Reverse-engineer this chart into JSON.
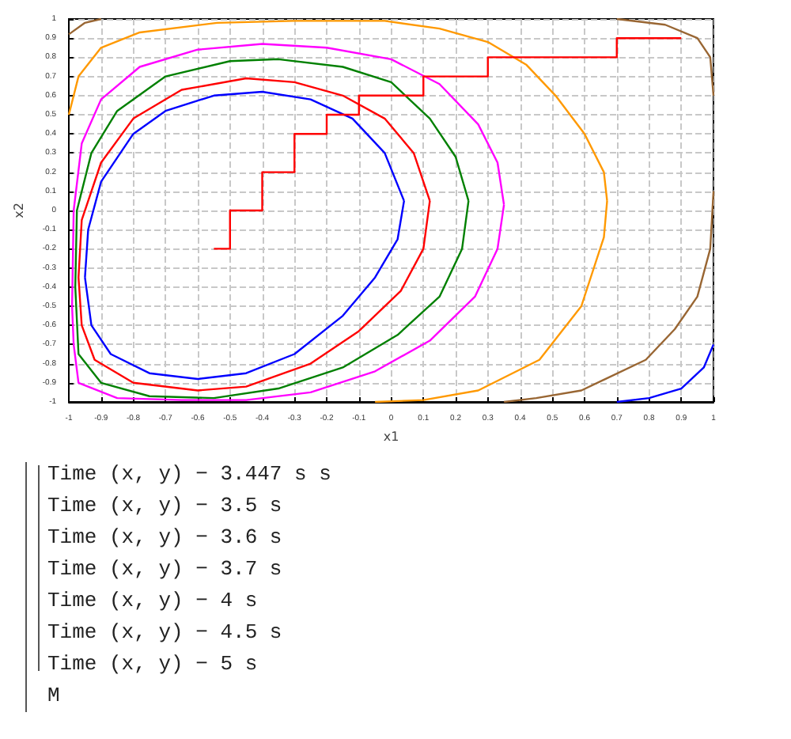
{
  "chart_data": {
    "type": "line",
    "xlabel": "x1",
    "ylabel": "x2",
    "grid": true,
    "marker": "none",
    "line_style": "solid",
    "xlim": [
      -1,
      1
    ],
    "ylim": [
      -1,
      1
    ],
    "xticks": [
      -1,
      -0.9,
      -0.8,
      -0.7,
      -0.6,
      -0.5,
      -0.4,
      -0.3,
      -0.2,
      -0.1,
      0,
      0.1,
      0.2,
      0.3,
      0.4,
      0.5,
      0.6,
      0.7,
      0.8,
      0.9,
      1
    ],
    "yticks": [
      -1,
      -0.9,
      -0.8,
      -0.7,
      -0.6,
      -0.5,
      -0.4,
      -0.3,
      -0.2,
      -0.1,
      0,
      0.1,
      0.2,
      0.3,
      0.4,
      0.5,
      0.6,
      0.7,
      0.8,
      0.9,
      1
    ],
    "series": [
      {
        "color": "#0000ff",
        "x": [
          -0.95,
          -0.94,
          -0.9,
          -0.8,
          -0.7,
          -0.55,
          -0.4,
          -0.25,
          -0.12,
          -0.02,
          0.04,
          null,
          -0.95,
          -0.93,
          -0.87,
          -0.75,
          -0.6,
          -0.45,
          -0.3,
          -0.15,
          -0.05,
          0.02,
          0.04
        ],
        "values": [
          -0.35,
          -0.1,
          0.15,
          0.4,
          0.52,
          0.6,
          0.62,
          0.58,
          0.48,
          0.3,
          0.05,
          null,
          -0.35,
          -0.6,
          -0.75,
          -0.85,
          -0.88,
          -0.85,
          -0.75,
          -0.55,
          -0.35,
          -0.15,
          0.05
        ]
      },
      {
        "color": "#ff0000",
        "x": [
          -0.97,
          -0.96,
          -0.9,
          -0.8,
          -0.65,
          -0.45,
          -0.3,
          -0.15,
          -0.02,
          0.07,
          0.12,
          null,
          -0.97,
          -0.96,
          -0.92,
          -0.8,
          -0.6,
          -0.45,
          -0.25,
          -0.1,
          0.03,
          0.1,
          0.12
        ],
        "values": [
          -0.35,
          -0.05,
          0.25,
          0.48,
          0.63,
          0.69,
          0.67,
          0.6,
          0.48,
          0.3,
          0.05,
          null,
          -0.35,
          -0.6,
          -0.78,
          -0.9,
          -0.94,
          -0.92,
          -0.8,
          -0.63,
          -0.42,
          -0.2,
          0.05
        ]
      },
      {
        "color": "#008000",
        "x": [
          -0.98,
          -0.975,
          -0.93,
          -0.85,
          -0.7,
          -0.5,
          -0.35,
          -0.15,
          0,
          0.12,
          0.2,
          0.24,
          null,
          -0.98,
          -0.97,
          -0.9,
          -0.75,
          -0.55,
          -0.35,
          -0.15,
          0.02,
          0.15,
          0.22,
          0.24
        ],
        "values": [
          -0.4,
          0,
          0.3,
          0.52,
          0.7,
          0.78,
          0.79,
          0.75,
          0.67,
          0.48,
          0.28,
          0.05,
          null,
          -0.4,
          -0.75,
          -0.9,
          -0.97,
          -0.98,
          -0.93,
          -0.82,
          -0.65,
          -0.45,
          -0.2,
          0.05
        ]
      },
      {
        "color": "#ff00ff",
        "x": [
          -0.99,
          -0.985,
          -0.96,
          -0.9,
          -0.78,
          -0.6,
          -0.4,
          -0.2,
          0,
          0.15,
          0.27,
          0.33,
          0.35,
          null,
          -0.99,
          -0.985,
          -0.97,
          -0.85,
          -0.65,
          -0.45,
          -0.25,
          -0.05,
          0.12,
          0.26,
          0.33,
          0.35
        ],
        "values": [
          -0.5,
          0,
          0.35,
          0.58,
          0.75,
          0.84,
          0.87,
          0.85,
          0.79,
          0.66,
          0.45,
          0.25,
          0.03,
          null,
          -0.5,
          -0.7,
          -0.9,
          -0.98,
          -0.99,
          -0.99,
          -0.95,
          -0.84,
          -0.68,
          -0.45,
          -0.2,
          0.03
        ]
      },
      {
        "color": "#ff9900",
        "x": [
          -1,
          -0.97,
          -0.9,
          -0.78,
          -0.54,
          -0.3,
          -0.02,
          0.15,
          0.3,
          0.42,
          0.51,
          0.6,
          0.66,
          0.67,
          null,
          -0.05,
          0.1,
          0.27,
          0.46,
          0.59,
          0.66,
          0.67
        ],
        "values": [
          0.5,
          0.7,
          0.85,
          0.93,
          0.98,
          0.99,
          0.99,
          0.95,
          0.88,
          0.76,
          0.6,
          0.4,
          0.2,
          0.05,
          null,
          -1,
          -0.99,
          -0.94,
          -0.78,
          -0.5,
          -0.14,
          0.05
        ]
      },
      {
        "color": "#996633",
        "x": [
          -1,
          -0.95,
          -0.9
        ],
        "values": [
          0.92,
          0.98,
          1
        ]
      },
      {
        "color": "#996633",
        "x": [
          0.7,
          0.85,
          0.95,
          0.99,
          1,
          null,
          0.35,
          0.45,
          0.59,
          0.79,
          0.88,
          0.95,
          0.99,
          1
        ],
        "values": [
          1,
          0.97,
          0.9,
          0.8,
          0.6,
          null,
          -1,
          -0.98,
          -0.94,
          -0.78,
          -0.62,
          -0.45,
          -0.2,
          0.1
        ]
      },
      {
        "color": "#0000ff",
        "x": [
          0.7,
          0.8,
          0.9,
          0.97,
          1
        ],
        "values": [
          -1,
          -0.98,
          -0.93,
          -0.82,
          -0.7
        ]
      },
      {
        "type": "step",
        "color": "#ff0000",
        "x": [
          -0.55,
          -0.5,
          -0.4,
          -0.3,
          -0.2,
          -0.1,
          0.1,
          0.3,
          0.7,
          0.9
        ],
        "values": [
          -0.2,
          0,
          0.2,
          0.4,
          0.5,
          0.6,
          0.7,
          0.8,
          0.9,
          0.9
        ]
      }
    ],
    "annotations": [
      "Time (x, y) − 3.447 s s",
      "Time (x, y) − 3.5 s",
      "Time (x, y) − 3.6 s",
      "Time (x, y) − 3.7 s",
      "Time (x, y) − 4 s",
      "Time (x, y) − 4.5 s",
      "Time (x, y) − 5 s",
      "M"
    ]
  }
}
